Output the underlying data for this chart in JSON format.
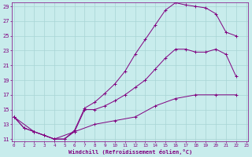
{
  "xlabel": "Windchill (Refroidissement éolien,°C)",
  "bg_color": "#c8ecec",
  "line_color": "#800080",
  "grid_color": "#a8d4d4",
  "xmin": 0,
  "xmax": 23,
  "ymin": 11,
  "ymax": 29,
  "yticks": [
    11,
    13,
    15,
    17,
    19,
    21,
    23,
    25,
    27,
    29
  ],
  "xticks": [
    0,
    1,
    2,
    3,
    4,
    5,
    6,
    7,
    8,
    9,
    10,
    11,
    12,
    13,
    14,
    15,
    16,
    17,
    18,
    19,
    20,
    21,
    22,
    23
  ],
  "curve_top_x": [
    0,
    1,
    2,
    3,
    4,
    5,
    6,
    7,
    8,
    9,
    10,
    11,
    12,
    13,
    14,
    15,
    16,
    17,
    18,
    19,
    20,
    21,
    22
  ],
  "curve_top_y": [
    14,
    12.5,
    12,
    11.5,
    11,
    11,
    12.2,
    15.2,
    16.0,
    17.2,
    18.5,
    20.2,
    22.5,
    24.5,
    26.5,
    28.5,
    29.5,
    29.2,
    29.0,
    28.8,
    28.0,
    25.5,
    25.0
  ],
  "curve_mid_x": [
    0,
    1,
    2,
    3,
    4,
    5,
    6,
    7,
    8,
    9,
    10,
    11,
    12,
    13,
    14,
    15,
    16,
    17,
    18,
    19,
    20,
    21,
    22
  ],
  "curve_mid_y": [
    14,
    12.5,
    12,
    11.5,
    11,
    11,
    12.0,
    15.0,
    15.0,
    15.5,
    16.2,
    17.0,
    18.0,
    19.0,
    20.5,
    22.0,
    23.2,
    23.2,
    22.8,
    22.8,
    23.2,
    22.5,
    19.5
  ],
  "curve_bot_x": [
    0,
    2,
    4,
    6,
    8,
    10,
    12,
    14,
    16,
    18,
    20,
    22
  ],
  "curve_bot_y": [
    14,
    12.0,
    11.0,
    12.0,
    13.0,
    13.5,
    14.0,
    15.5,
    16.5,
    17.0,
    17.0,
    17.0
  ]
}
